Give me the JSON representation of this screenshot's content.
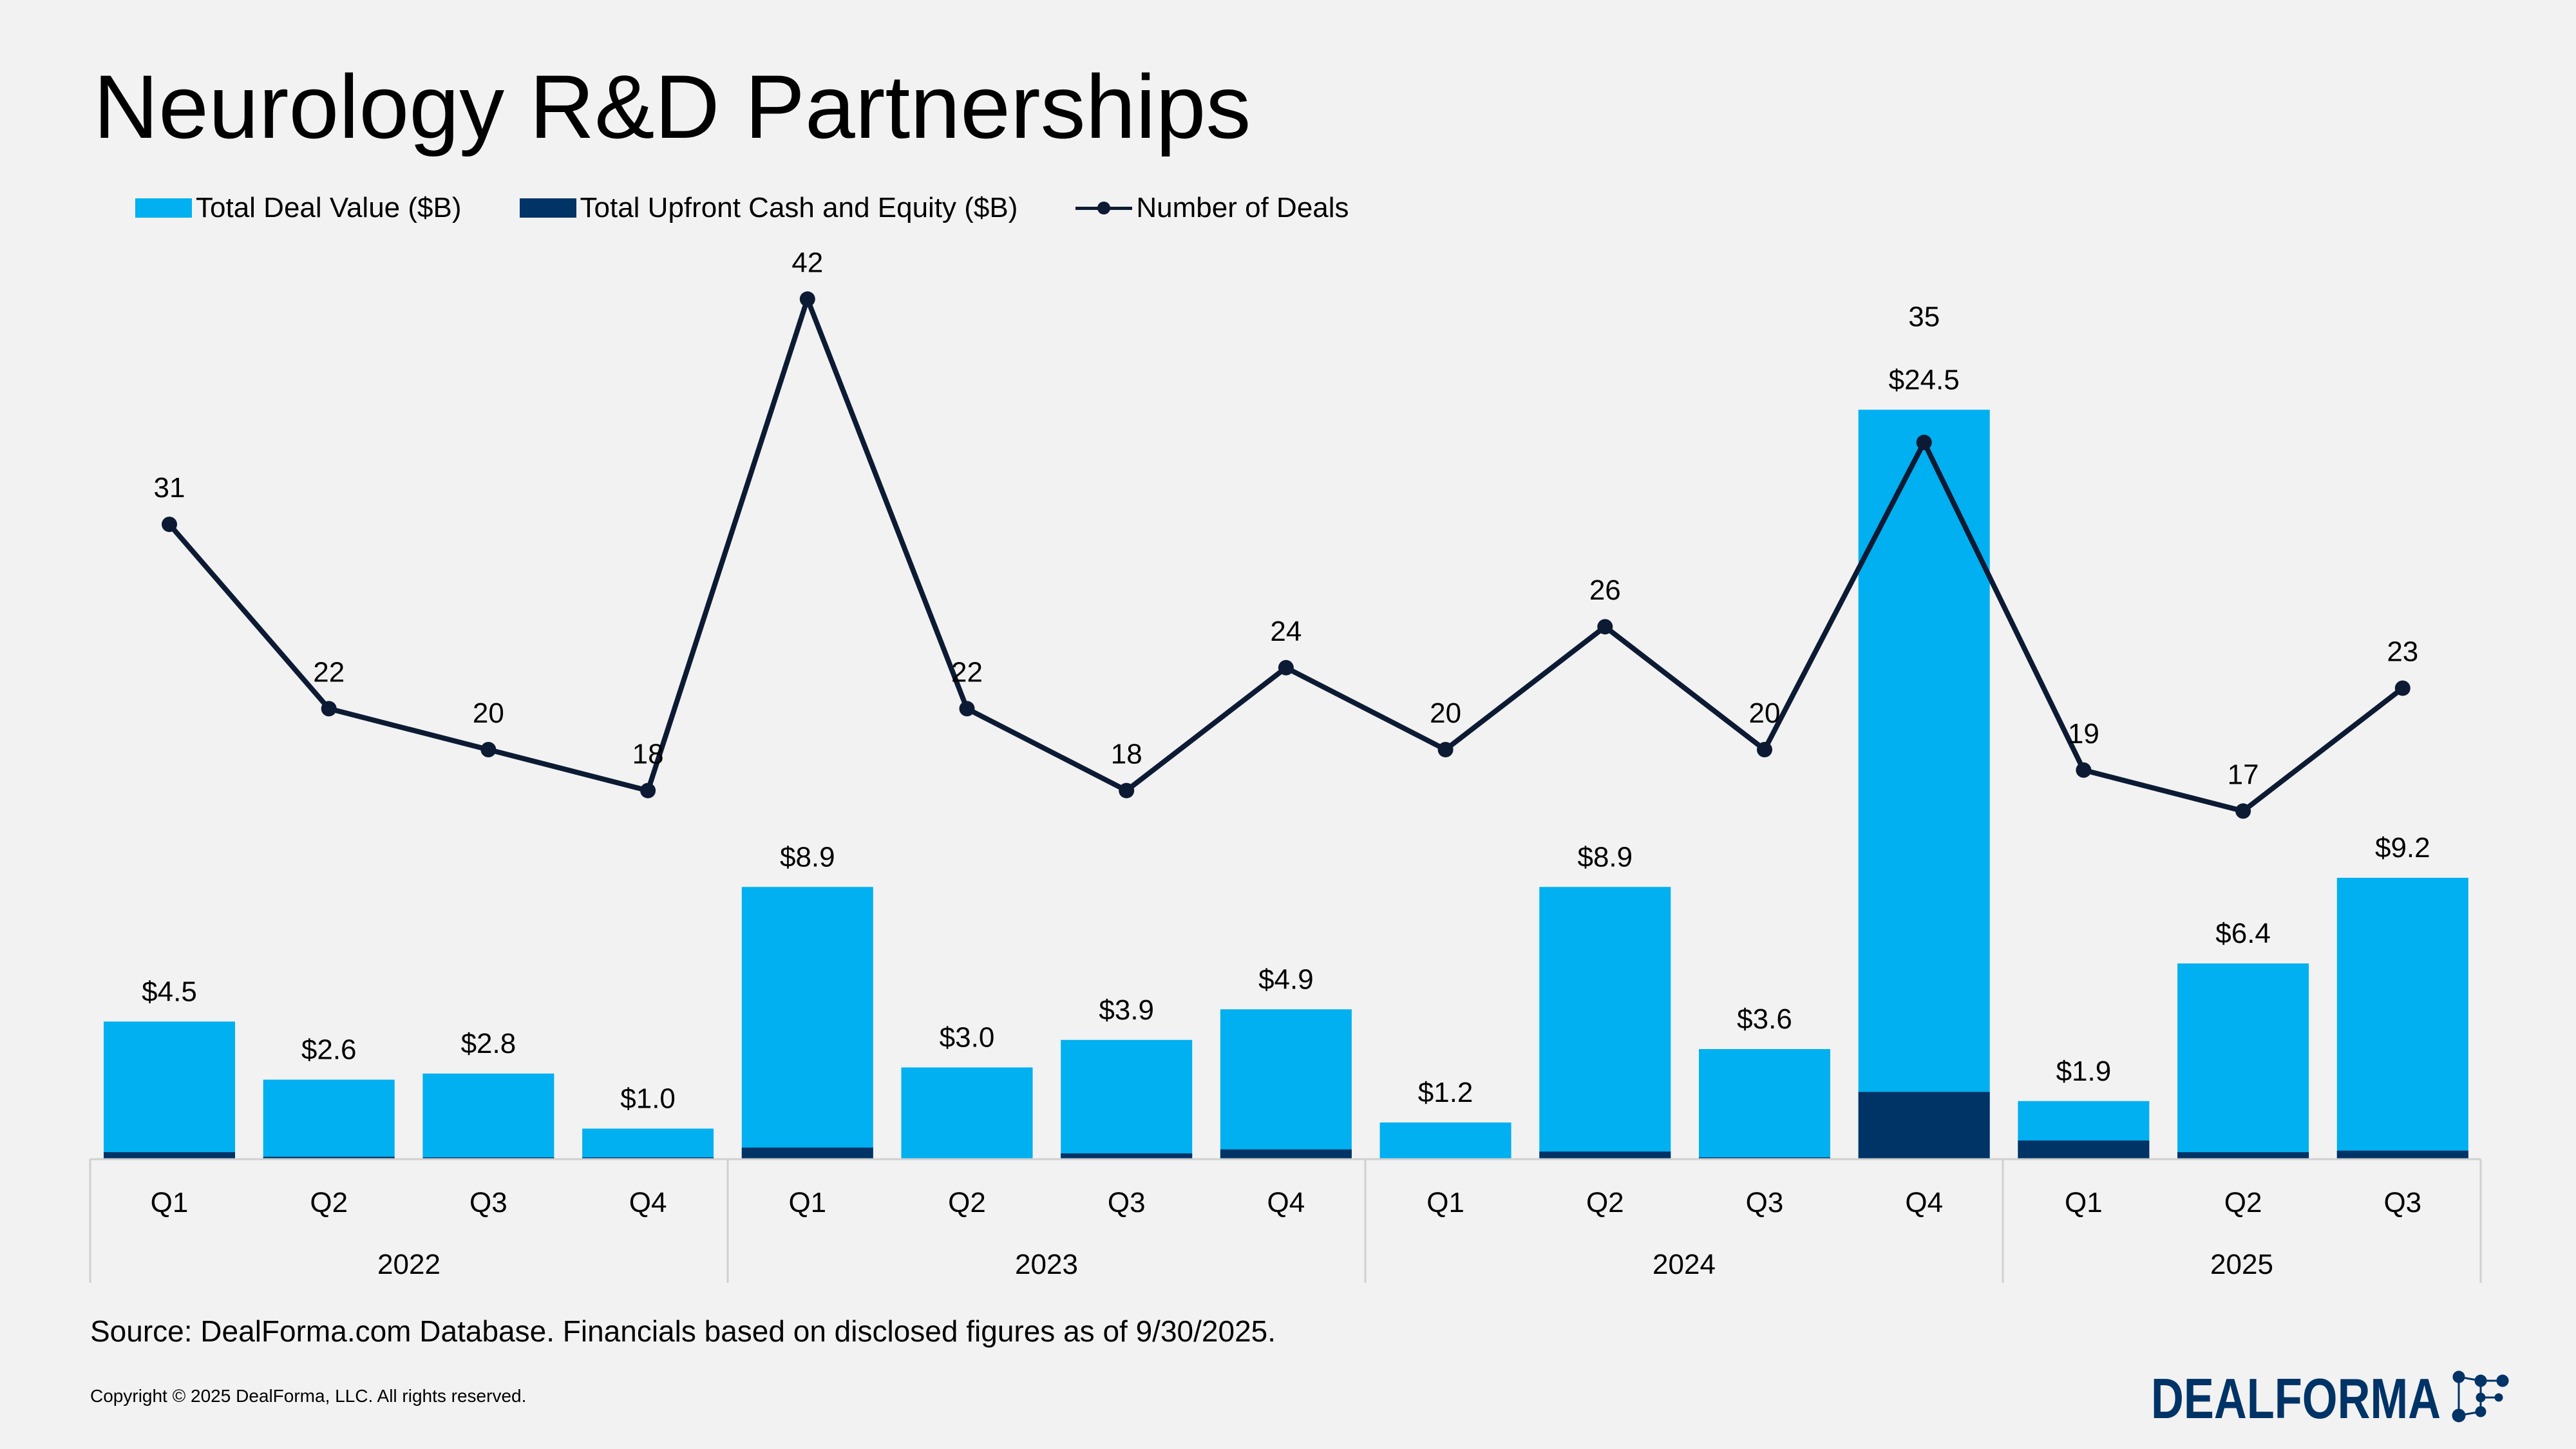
{
  "title": "Neurology R&D Partnerships",
  "colors": {
    "total": "#00b0f0",
    "upfront": "#003366",
    "line": "#0c1b33",
    "background": "#f2f2f2"
  },
  "chart_data": {
    "type": "bar",
    "title": "Neurology R&D Partnerships",
    "legend_placement": "top-left",
    "grid": false,
    "years": [
      "2022",
      "2023",
      "2024",
      "2025"
    ],
    "categories": [
      "Q1",
      "Q2",
      "Q3",
      "Q4",
      "Q1",
      "Q2",
      "Q3",
      "Q4",
      "Q1",
      "Q2",
      "Q3",
      "Q4",
      "Q1",
      "Q2",
      "Q3"
    ],
    "category_years": [
      "2022",
      "2022",
      "2022",
      "2022",
      "2023",
      "2023",
      "2023",
      "2023",
      "2024",
      "2024",
      "2024",
      "2024",
      "2025",
      "2025",
      "2025"
    ],
    "series": [
      {
        "name": "Total Deal Value ($B)",
        "kind": "bar",
        "values": [
          4.5,
          2.6,
          2.8,
          1.0,
          8.9,
          3.0,
          3.9,
          4.9,
          1.2,
          8.9,
          3.6,
          24.5,
          1.9,
          6.4,
          9.2
        ],
        "labels": [
          "$4.5",
          "$2.6",
          "$2.8",
          "$1.0",
          "$8.9",
          "$3.0",
          "$3.9",
          "$4.9",
          "$1.2",
          "$8.9",
          "$3.6",
          "$24.5",
          "$1.9",
          "$6.4",
          "$9.2"
        ]
      },
      {
        "name": "Total Upfront Cash and Equity ($B)",
        "kind": "bar",
        "values": [
          0.23,
          0.08,
          0.06,
          0.06,
          0.38,
          0.0,
          0.19,
          0.32,
          0.02,
          0.25,
          0.06,
          2.2,
          0.61,
          0.23,
          0.28
        ]
      },
      {
        "name": "Number of Deals",
        "kind": "line",
        "values": [
          31,
          22,
          20,
          18,
          42,
          22,
          18,
          24,
          20,
          26,
          20,
          35,
          19,
          17,
          23
        ]
      }
    ]
  },
  "source": "Source: DealForma.com Database. Financials based on disclosed figures as of 9/30/2025.",
  "copyright": "Copyright © 2025 DealForma, LLC. All rights reserved.",
  "logo": {
    "text": "DealForma"
  }
}
